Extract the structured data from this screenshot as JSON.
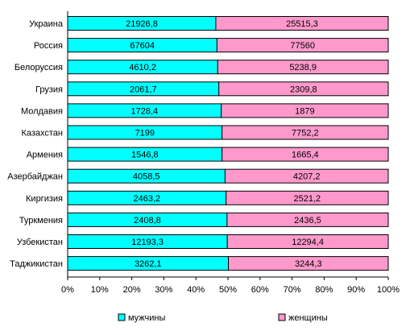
{
  "chart_data": {
    "type": "bar",
    "orientation": "horizontal",
    "stacking": "percent",
    "categories": [
      "Украина",
      "Россия",
      "Белоруссия",
      "Грузия",
      "Молдавия",
      "Казахстан",
      "Армения",
      "Азербайджан",
      "Киргизия",
      "Туркмения",
      "Узбекистан",
      "Таджикистан"
    ],
    "series": [
      {
        "name": "мужчины",
        "color": "#00ffff",
        "values": [
          21926.8,
          67604,
          4610.2,
          2061.7,
          1728.4,
          7199,
          1546.8,
          4058.5,
          2463.2,
          2408.8,
          12193.3,
          3262.1
        ],
        "labels": [
          "21926,8",
          "67604",
          "4610,2",
          "2061,7",
          "1728,4",
          "7199",
          "1546,8",
          "4058,5",
          "2463,2",
          "2408,8",
          "12193,3",
          "3262,1"
        ]
      },
      {
        "name": "женщины",
        "color": "#ff99cc",
        "values": [
          25515.3,
          77560,
          5238.9,
          2309.8,
          1879,
          7752.2,
          1665.4,
          4207.2,
          2521.2,
          2436.5,
          12294.4,
          3244.3
        ],
        "labels": [
          "25515,3",
          "77560",
          "5238,9",
          "2309,8",
          "1879",
          "7752,2",
          "1665,4",
          "4207,2",
          "2521,2",
          "2436,5",
          "12294,4",
          "3244,3"
        ]
      }
    ],
    "x_ticks": [
      "0%",
      "10%",
      "20%",
      "30%",
      "40%",
      "50%",
      "60%",
      "70%",
      "80%",
      "90%",
      "100%"
    ],
    "xlim": [
      0,
      100
    ],
    "grid": false,
    "legend_position": "bottom"
  }
}
